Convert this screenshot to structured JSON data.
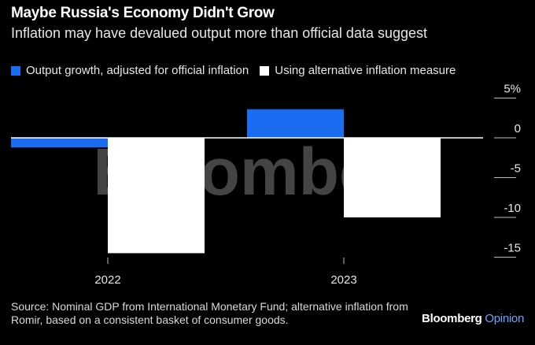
{
  "title": "Maybe Russia's Economy Didn't Grow",
  "subtitle": "Inflation may have devalued output more than official data suggest",
  "legend": [
    {
      "label": "Output growth, adjusted for official inflation",
      "color": "#1a6cf0"
    },
    {
      "label": "Using alternative inflation measure",
      "color": "#ffffff"
    }
  ],
  "watermark": "Bloomberg",
  "source": "Source: Nominal GDP from International Monetary Fund; alternative inflation from Romir, based on a consistent basket of consumer goods.",
  "brand": {
    "name": "Bloomberg",
    "suffix": "Opinion"
  },
  "chart_data": {
    "type": "bar",
    "categories": [
      "2022",
      "2023"
    ],
    "series": [
      {
        "name": "Output growth, adjusted for official inflation",
        "color": "#1a6cf0",
        "values": [
          -1.2,
          3.6
        ]
      },
      {
        "name": "Using alternative inflation measure",
        "color": "#ffffff",
        "values": [
          -14.5,
          -10.0
        ]
      }
    ],
    "yticks": [
      5,
      0,
      -5,
      -10,
      -15
    ],
    "ytick_labels": [
      "5%",
      "0",
      "-5",
      "-10",
      "-15"
    ],
    "ylim": [
      -15,
      5
    ],
    "xlabel": "",
    "ylabel": ""
  }
}
